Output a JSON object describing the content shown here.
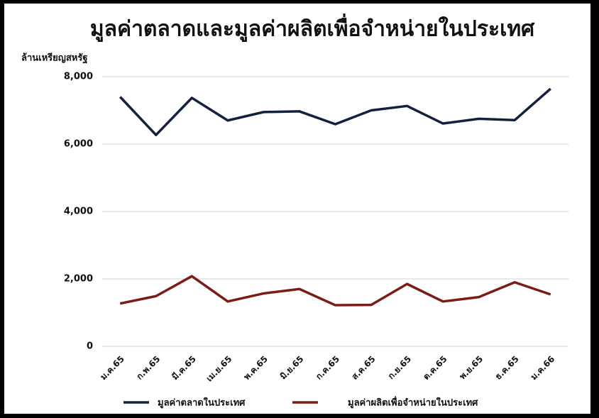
{
  "chart_data": {
    "type": "line",
    "title": "มูลค่าตลาดและมูลค่าผลิตเพื่อจำหน่ายในประเทศ",
    "y_label": "ล้านเหรียญสหรัฐ",
    "categories": [
      "ม.ค.65",
      "ก.พ.65",
      "มี.ค.65",
      "เม.ย.65",
      "พ.ค.65",
      "มิ.ย.65",
      "ก.ค.65",
      "ส.ค.65",
      "ก.ย.65",
      "ต.ค.65",
      "พ.ย.65",
      "ธ.ค.65",
      "ม.ค.66"
    ],
    "series": [
      {
        "name": "มูลค่าตลาดในประเทศ",
        "color": "#14213d",
        "values": [
          7400,
          6270,
          7370,
          6700,
          6950,
          6970,
          6590,
          7000,
          7130,
          6610,
          6750,
          6710,
          7640
        ]
      },
      {
        "name": "มูลค่าผลิตเพื่อจำหน่ายในประเทศ",
        "color": "#7b1c17",
        "values": [
          1270,
          1490,
          2080,
          1330,
          1570,
          1700,
          1220,
          1230,
          1850,
          1330,
          1460,
          1900,
          1540
        ]
      }
    ],
    "ylim": [
      0,
      8000
    ],
    "yticks": [
      0,
      {
        "value": 2000,
        "label": "2,000"
      },
      {
        "value": 4000,
        "label": "4,000"
      },
      {
        "value": 6000,
        "label": "6,000"
      },
      {
        "value": 8000,
        "label": "8,000"
      }
    ],
    "grid": true
  }
}
